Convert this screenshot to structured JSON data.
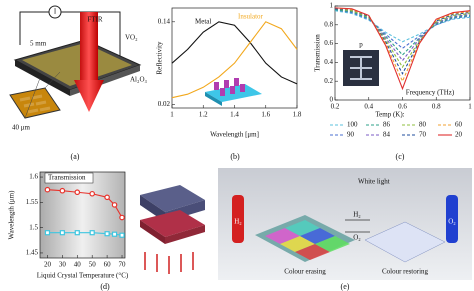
{
  "chart_data": [
    {
      "type": "line",
      "xlabel": "Wavelength [μm]",
      "ylabel": "Reflectivity",
      "x": [
        1.0,
        1.1,
        1.2,
        1.3,
        1.4,
        1.5,
        1.6,
        1.7,
        1.8
      ],
      "series": [
        {
          "name": "Metal",
          "color": "#111111",
          "values": [
            0.08,
            0.1,
            0.125,
            0.14,
            0.135,
            0.11,
            0.08,
            0.06,
            0.05
          ]
        },
        {
          "name": "Insulator",
          "color": "#f2a81d",
          "values": [
            0.03,
            0.035,
            0.045,
            0.06,
            0.08,
            0.11,
            0.14,
            0.13,
            0.1
          ]
        }
      ],
      "xlim": [
        1.0,
        1.8
      ],
      "xticks": [
        1,
        1.2,
        1.4,
        1.6,
        1.8
      ],
      "ylim": [
        0.015,
        0.16
      ],
      "yticks": [
        0.02,
        0.14
      ],
      "grid": false
    },
    {
      "type": "line",
      "xlabel": "Frequency (THz)",
      "ylabel": "Transmission",
      "legend_title": "Temp (K):",
      "inset_label": "p",
      "x": [
        0.2,
        0.3,
        0.4,
        0.5,
        0.6,
        0.7,
        0.8,
        0.9,
        1.0
      ],
      "series": [
        {
          "name": "100",
          "color": "#5bc0de",
          "dash": true,
          "values": [
            0.95,
            0.92,
            0.85,
            0.72,
            0.62,
            0.7,
            0.8,
            0.86,
            0.88
          ]
        },
        {
          "name": "90",
          "color": "#4a6fd1",
          "dash": true,
          "values": [
            0.96,
            0.93,
            0.86,
            0.7,
            0.55,
            0.68,
            0.8,
            0.87,
            0.89
          ]
        },
        {
          "name": "86",
          "color": "#2ca089",
          "dash": true,
          "values": [
            0.96,
            0.94,
            0.87,
            0.68,
            0.48,
            0.66,
            0.81,
            0.88,
            0.9
          ]
        },
        {
          "name": "84",
          "color": "#7b5bc4",
          "dash": true,
          "values": [
            0.97,
            0.95,
            0.88,
            0.66,
            0.42,
            0.65,
            0.82,
            0.89,
            0.91
          ]
        },
        {
          "name": "80",
          "color": "#8fbf3f",
          "dash": true,
          "values": [
            0.97,
            0.95,
            0.88,
            0.64,
            0.35,
            0.63,
            0.83,
            0.9,
            0.92
          ]
        },
        {
          "name": "70",
          "color": "#1f4e9e",
          "dash": true,
          "values": [
            0.97,
            0.96,
            0.89,
            0.62,
            0.28,
            0.62,
            0.84,
            0.91,
            0.93
          ]
        },
        {
          "name": "60",
          "color": "#f0a030",
          "dash": true,
          "values": [
            0.98,
            0.96,
            0.9,
            0.6,
            0.2,
            0.61,
            0.85,
            0.92,
            0.94
          ]
        },
        {
          "name": "20",
          "color": "#e03030",
          "dash": false,
          "values": [
            0.98,
            0.97,
            0.9,
            0.58,
            0.12,
            0.6,
            0.86,
            0.93,
            0.95
          ]
        }
      ],
      "xlim": [
        0.2,
        1.0
      ],
      "xticks": [
        0.2,
        0.4,
        0.6,
        0.8,
        1
      ],
      "ylim": [
        0,
        1
      ],
      "yticks": [
        0,
        0.2,
        0.4,
        0.6,
        0.8,
        1
      ],
      "grid": false
    },
    {
      "type": "line",
      "xlabel": "Liquid Crystal Temperature (°C)",
      "ylabel": "Wavelength (μm)",
      "legend_title": "Transmission",
      "x": [
        20,
        30,
        40,
        50,
        60,
        65,
        70
      ],
      "series": [
        {
          "color": "#e8322b",
          "marker": "circle",
          "values": [
            1.575,
            1.573,
            1.57,
            1.567,
            1.56,
            1.545,
            1.52
          ]
        },
        {
          "color": "#3fc6e0",
          "marker": "square",
          "values": [
            1.49,
            1.49,
            1.49,
            1.49,
            1.488,
            1.487,
            1.485
          ]
        }
      ],
      "xlim": [
        15,
        72
      ],
      "xticks": [
        20,
        30,
        40,
        50,
        60,
        70
      ],
      "ylim": [
        1.44,
        1.61
      ],
      "yticks": [
        1.45,
        1.5,
        1.55,
        1.6
      ],
      "grid": false
    }
  ],
  "illustrations": {
    "a": {
      "source": "I",
      "beam": "FTIR",
      "size": "5 mm",
      "film": "VO₂",
      "substrate": "Al₂O₃",
      "period": "40 μm"
    },
    "e": {
      "light": "White light",
      "gas_left": "H₂",
      "gas_right": "O₂",
      "arrow_top": "H₂",
      "arrow_bottom": "O₂",
      "step_left": "Colour erasing",
      "step_right": "Colour restoring"
    }
  },
  "captions": [
    "(a)",
    "(b)",
    "(c)",
    "(d)",
    "(e)"
  ]
}
